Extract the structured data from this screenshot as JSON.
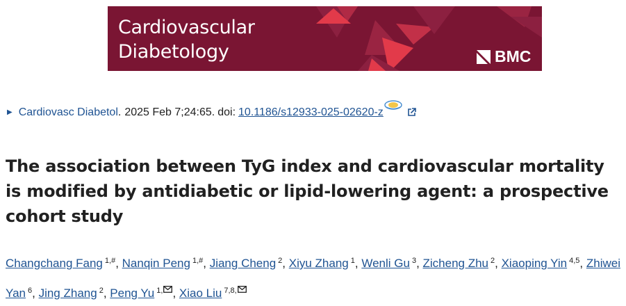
{
  "banner": {
    "journal_line1": "Cardiovascular",
    "journal_line2": "Diabetology",
    "publisher": "BMC",
    "colors": {
      "background": "#7a1533",
      "accent": "#e23a4a"
    }
  },
  "citation": {
    "journal_link": "Cardiovasc Diabetol",
    "separator": ".",
    "pubdate": "2025 Feb 7;24:65.",
    "doi_label": "doi:",
    "doi": "10.1186/s12933-025-02620-z",
    "icons": [
      "triangle-right-icon",
      "fulltext-icon",
      "external-link-icon"
    ]
  },
  "article": {
    "title": "The association between TyG index and cardiovascular mortality is modified by antidiabetic or lipid-lowering agent: a prospective cohort study"
  },
  "authors": [
    {
      "name": "Changchang Fang",
      "sup": "1,#"
    },
    {
      "name": "Nanqin Peng",
      "sup": "1,#"
    },
    {
      "name": "Jiang Cheng",
      "sup": "2"
    },
    {
      "name": "Xiyu Zhang",
      "sup": "1"
    },
    {
      "name": "Wenli Gu",
      "sup": "3"
    },
    {
      "name": "Zicheng Zhu",
      "sup": "2"
    },
    {
      "name": "Xiaoping Yin",
      "sup": "4,5"
    },
    {
      "name": "Zhiwei Yan",
      "sup": "6"
    },
    {
      "name": "Jing Zhang",
      "sup": "2"
    },
    {
      "name": "Peng Yu",
      "sup": "1,"
    },
    {
      "name": "Xiao Liu",
      "sup": "7,8,"
    }
  ],
  "corresponding_authors": [
    "Peng Yu",
    "Xiao Liu"
  ],
  "link_color": "#205493"
}
